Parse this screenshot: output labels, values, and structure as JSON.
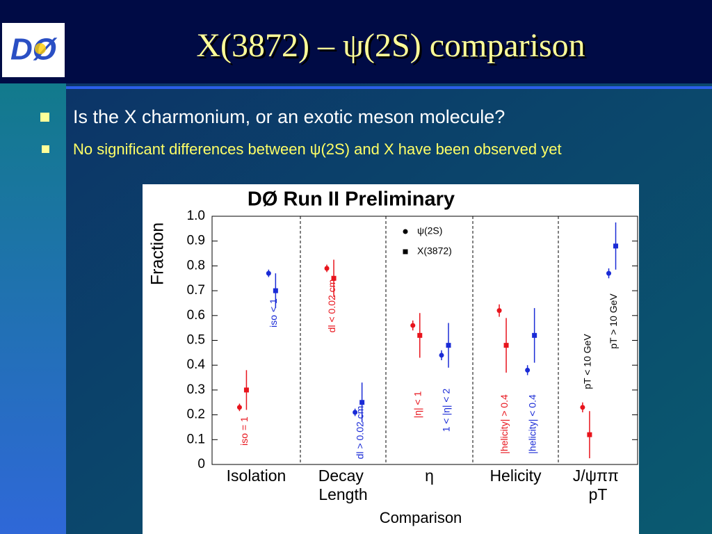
{
  "slide": {
    "logo": "DØ",
    "title": "X(3872) – ψ(2S) comparison",
    "bullets": [
      "Is the X charmonium, or an exotic meson molecule?",
      "No significant differences between ψ(2S) and X have been observed yet"
    ]
  },
  "chart_data": {
    "type": "errorbar",
    "title": "DØ Run II Preliminary",
    "xlabel": "Comparison",
    "ylabel": "Fraction",
    "ylim": [
      0,
      1
    ],
    "yticks": [
      0,
      0.1,
      0.2,
      0.3,
      0.4,
      0.5,
      0.6,
      0.7,
      0.8,
      0.9,
      {
        "value": 1,
        "label": "1.0"
      }
    ],
    "legend": [
      {
        "name": "ψ(2S)",
        "marker": "circle"
      },
      {
        "name": "X(3872)",
        "marker": "square"
      }
    ],
    "categories": [
      {
        "label": "Isolation",
        "bins": [
          {
            "label": "iso = 1",
            "color": "#e8141c",
            "label_color": "#e8141c",
            "values": [
              0.23,
              0.3
            ],
            "errors": [
              0.015,
              0.08
            ]
          },
          {
            "label": "iso < 1",
            "color": "#1a2bd6",
            "label_color": "#1a2bd6",
            "values": [
              0.77,
              0.7
            ],
            "errors": [
              0.015,
              0.07
            ]
          }
        ]
      },
      {
        "label": "Decay Length",
        "bins": [
          {
            "label": "dl < 0.02 cm",
            "color": "#e8141c",
            "label_color": "#e8141c",
            "values": [
              0.79,
              0.75
            ],
            "errors": [
              0.015,
              0.075
            ]
          },
          {
            "label": "dl > 0.02 cm",
            "color": "#1a2bd6",
            "label_color": "#1a2bd6",
            "values": [
              0.21,
              0.25
            ],
            "errors": [
              0.015,
              0.08
            ]
          }
        ]
      },
      {
        "label": "η",
        "bins": [
          {
            "label": "|η| < 1",
            "color": "#e8141c",
            "label_color": "#e8141c",
            "values": [
              0.56,
              0.52
            ],
            "errors": [
              0.02,
              0.09
            ]
          },
          {
            "label": "1 < |η| < 2",
            "color": "#1a2bd6",
            "label_color": "#1a2bd6",
            "values": [
              0.44,
              0.48
            ],
            "errors": [
              0.02,
              0.09
            ]
          }
        ]
      },
      {
        "label": "Helicity",
        "bins": [
          {
            "label": "|helicity| > 0.4",
            "color": "#e8141c",
            "label_color": "#e8141c",
            "values": [
              0.62,
              0.48
            ],
            "errors": [
              0.025,
              0.11
            ]
          },
          {
            "label": "|helicity| < 0.4",
            "color": "#1a2bd6",
            "label_color": "#1a2bd6",
            "values": [
              0.38,
              0.52
            ],
            "errors": [
              0.02,
              0.11
            ]
          }
        ]
      },
      {
        "label": "J/ψππ pT",
        "bins": [
          {
            "label": "pT < 10 GeV",
            "color": "#e8141c",
            "label_color": "#000000",
            "values": [
              0.23,
              0.12
            ],
            "errors": [
              0.02,
              0.095
            ]
          },
          {
            "label": "pT > 10 GeV",
            "color": "#1a2bd6",
            "label_color": "#000000",
            "values": [
              0.77,
              0.88
            ],
            "errors": [
              0.02,
              0.095
            ]
          }
        ]
      }
    ]
  }
}
